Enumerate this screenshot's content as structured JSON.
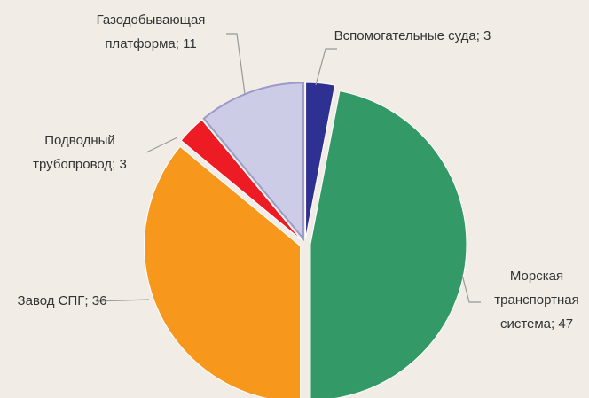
{
  "chart_data": {
    "type": "pie",
    "categories": [
      "Вспомогательные суда",
      "Морская транспортная система",
      "Завод СПГ",
      "Подводный трубопровод",
      "Газодобывающая платформа"
    ],
    "values": [
      3,
      47,
      36,
      3,
      11
    ],
    "colors": [
      "#2e3192",
      "#339966",
      "#f7981d",
      "#ed1c24",
      "#cccce6"
    ],
    "label_separator": "; "
  }
}
